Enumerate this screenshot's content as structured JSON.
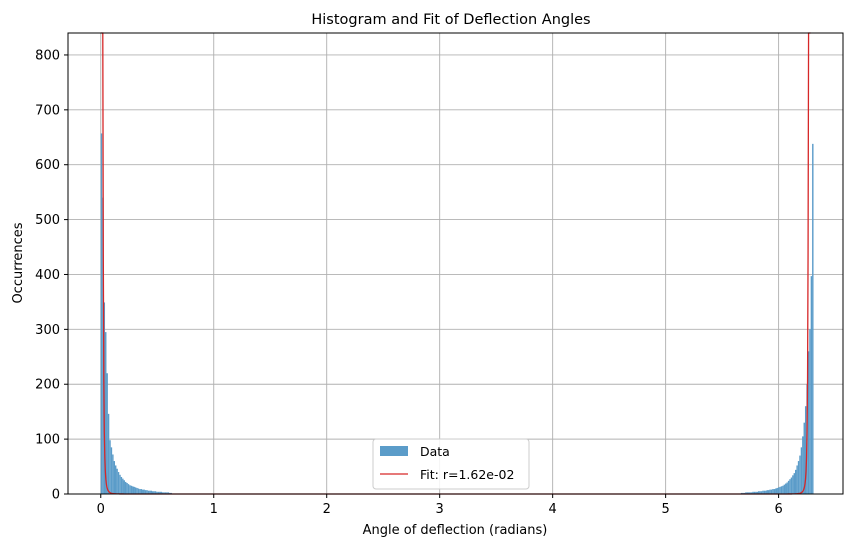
{
  "chart_data": {
    "type": "bar",
    "title": "Histogram and Fit of Deflection Angles",
    "xlabel": "Angle of deflection (radians)",
    "ylabel": "Occurrences",
    "xlim": [
      -0.29,
      6.57
    ],
    "ylim": [
      0,
      840
    ],
    "xticks": [
      0,
      1,
      2,
      3,
      4,
      5,
      6
    ],
    "yticks": [
      0,
      100,
      200,
      300,
      400,
      500,
      600,
      700,
      800
    ],
    "grid": true,
    "legend_position": "lower center",
    "colors": {
      "data": "#5b9cc9",
      "fit": "#d62728",
      "grid": "#b0b0b0"
    },
    "series": [
      {
        "name": "Data",
        "kind": "histogram",
        "bin_width": 0.0126,
        "bins_left": {
          "start": 0.0,
          "values": [
            657,
            540,
            349,
            295,
            220,
            146,
            98,
            85,
            72,
            60,
            52,
            46,
            40,
            35,
            31,
            28,
            25,
            22,
            20,
            18,
            16,
            15,
            14,
            13,
            12,
            11,
            10,
            9,
            9,
            8,
            8,
            7,
            7,
            6,
            6,
            6,
            5,
            5,
            5,
            4,
            4,
            4,
            4,
            3,
            3,
            3,
            3,
            3,
            2,
            2
          ]
        },
        "bins_right": {
          "start": 5.6664,
          "values": [
            2,
            2,
            2,
            3,
            3,
            3,
            3,
            3,
            4,
            4,
            4,
            4,
            5,
            5,
            5,
            6,
            6,
            6,
            7,
            7,
            8,
            8,
            9,
            9,
            10,
            11,
            12,
            13,
            14,
            15,
            17,
            19,
            21,
            24,
            27,
            30,
            34,
            38,
            44,
            52,
            60,
            70,
            85,
            105,
            130,
            160,
            200,
            260,
            300,
            397,
            638
          ]
        }
      },
      {
        "name": "Fit: r=1.62e-02",
        "kind": "line",
        "r": 0.0162,
        "x_range": [
          0.0,
          6.2832
        ]
      }
    ]
  }
}
